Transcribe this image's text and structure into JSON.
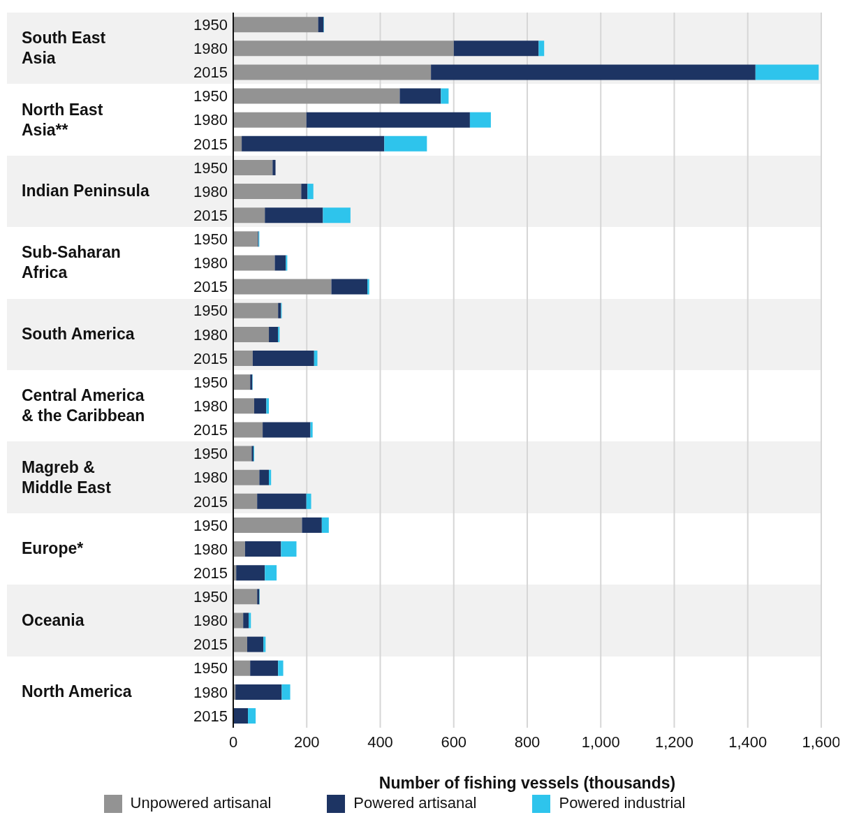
{
  "chart_data": {
    "type": "bar",
    "orientation": "horizontal",
    "stacked": true,
    "categories": [
      "1950",
      "1980",
      "2015",
      "1950",
      "1980",
      "2015",
      "1950",
      "1980",
      "2015",
      "1950",
      "1980",
      "2015",
      "1950",
      "1980",
      "2015",
      "1950",
      "1980",
      "2015",
      "1950",
      "1980",
      "2015",
      "1950",
      "1980",
      "2015",
      "1950",
      "1980",
      "2015",
      "1950",
      "1980",
      "2015"
    ],
    "series": [
      {
        "name": "Unpowered artisanal",
        "color": "#939393",
        "values": [
          231,
          600,
          538,
          453,
          199,
          23,
          107,
          185,
          86,
          67,
          113,
          267,
          122,
          97,
          53,
          46,
          57,
          80,
          50,
          71,
          65,
          187,
          32,
          8,
          65,
          27,
          38,
          46,
          6,
          0
        ]
      },
      {
        "name": "Powered artisanal",
        "color": "#1d3463",
        "values": [
          15,
          231,
          883,
          112,
          445,
          388,
          8,
          17,
          158,
          2,
          30,
          98,
          8,
          25,
          167,
          6,
          33,
          130,
          5,
          26,
          134,
          54,
          98,
          78,
          6,
          15,
          44,
          76,
          126,
          40
        ]
      },
      {
        "name": "Powered industrial",
        "color": "#2ec4ec",
        "values": [
          1,
          15,
          172,
          21,
          57,
          116,
          0,
          16,
          75,
          2,
          4,
          5,
          2,
          4,
          9,
          1,
          7,
          6,
          2,
          6,
          13,
          19,
          42,
          32,
          1,
          6,
          6,
          14,
          23,
          21
        ]
      }
    ],
    "annotations": [
      "South East\nAsia",
      "North East\nAsia**",
      "Indian Peninsula",
      "Sub-Saharan\nAfrica",
      "South America",
      "Central America\n& the Caribbean",
      "Magreb &\nMiddle East",
      "Europe*",
      "Oceania",
      "North America"
    ],
    "xlabel": "Number of fishing vessels (thousands)",
    "xlim": [
      0,
      1600
    ],
    "xticks": [
      0,
      200,
      400,
      600,
      800,
      {
        "value": 1000,
        "label": "1,000"
      },
      {
        "value": 1200,
        "label": "1,200"
      },
      {
        "value": 1400,
        "label": "1,400"
      },
      {
        "value": 1600,
        "label": "1,600"
      }
    ],
    "grid": "x",
    "legend": "bottom"
  }
}
